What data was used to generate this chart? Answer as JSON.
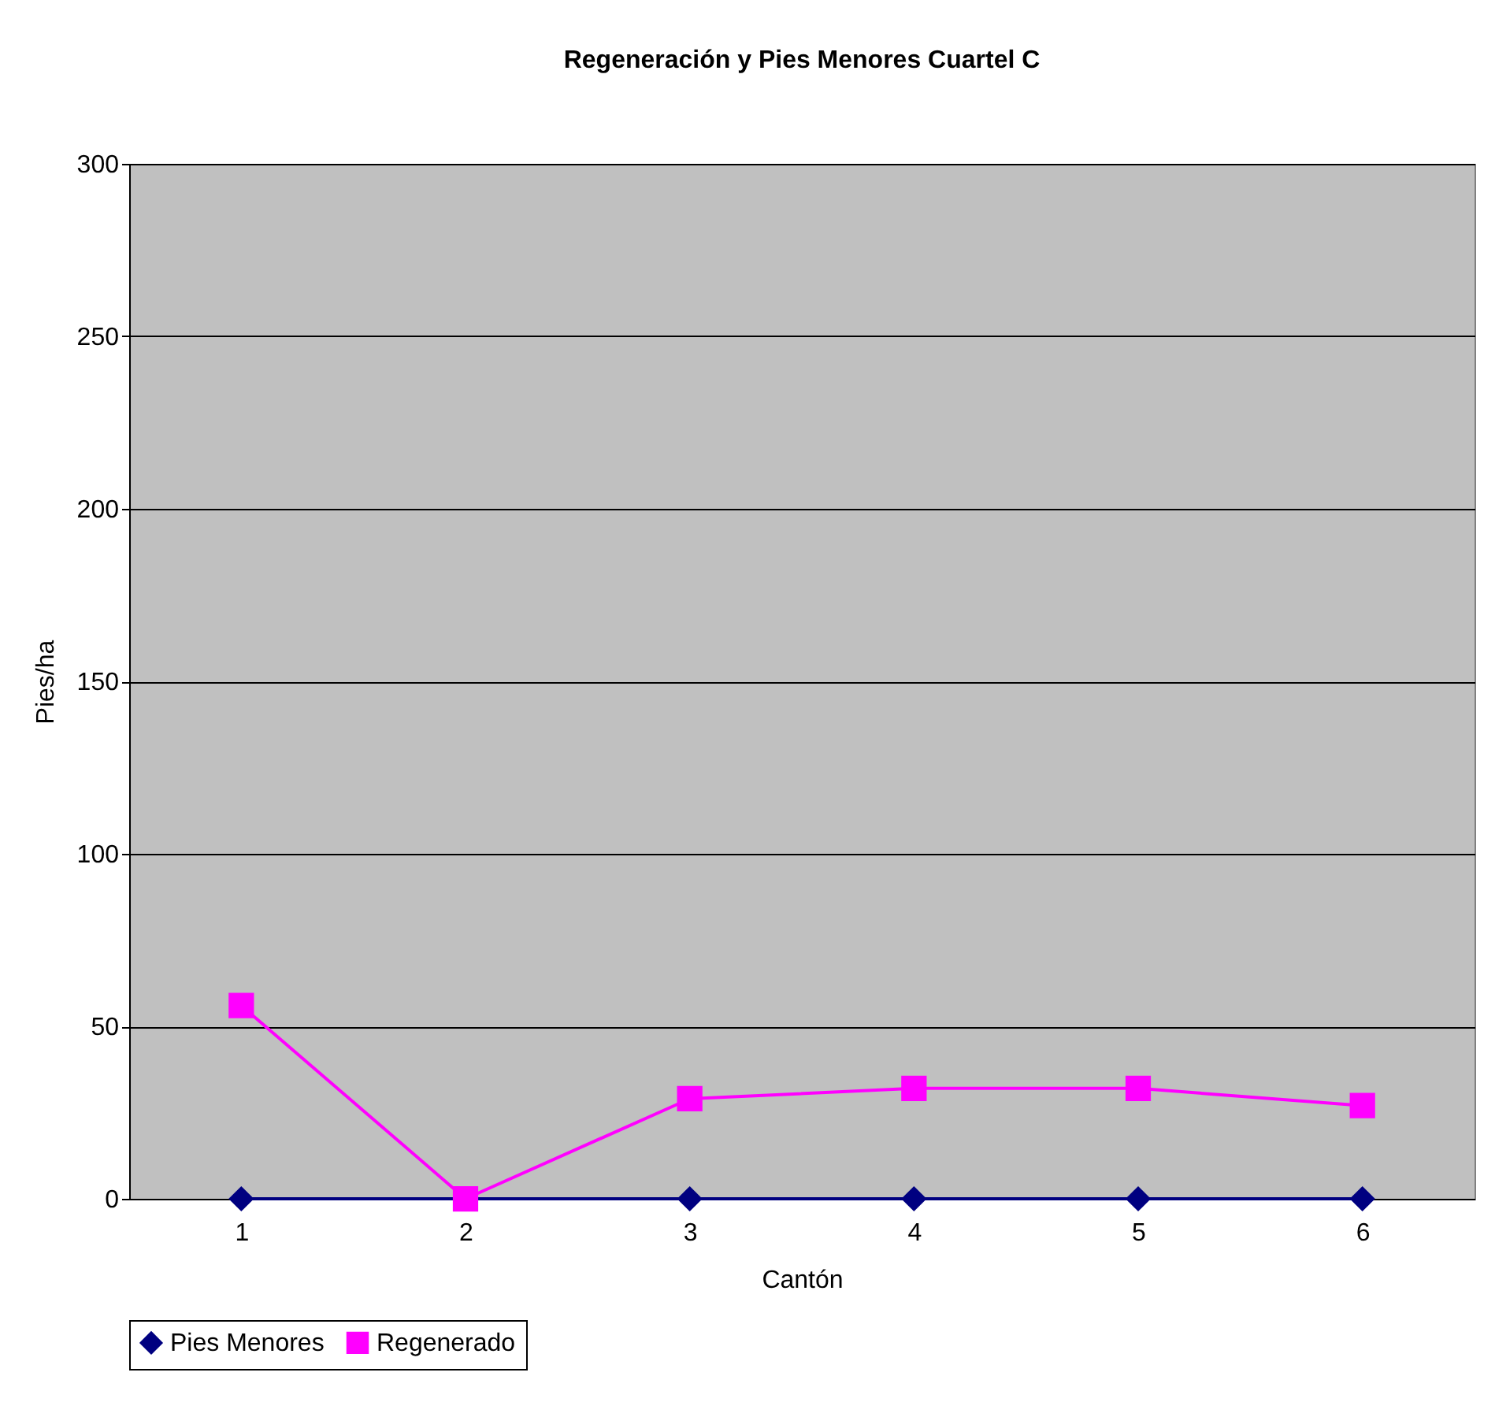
{
  "chart_data": {
    "type": "line",
    "title": "Regeneración y Pies Menores Cuartel C",
    "xlabel": "Cantón",
    "ylabel": "Pies/ha",
    "categories": [
      "1",
      "2",
      "3",
      "4",
      "5",
      "6"
    ],
    "series": [
      {
        "name": "Pies Menores",
        "color": "#000080",
        "marker": "diamond",
        "values": [
          0,
          0,
          0,
          0,
          0,
          0
        ]
      },
      {
        "name": "Regenerado",
        "color": "#ff00ff",
        "marker": "square",
        "values": [
          56,
          0,
          29,
          32,
          32,
          27
        ]
      }
    ],
    "ylim": [
      0,
      300
    ],
    "yticks": [
      0,
      50,
      100,
      150,
      200,
      250,
      300
    ],
    "grid": "y",
    "legend": "bottom",
    "line_style": "solid"
  }
}
